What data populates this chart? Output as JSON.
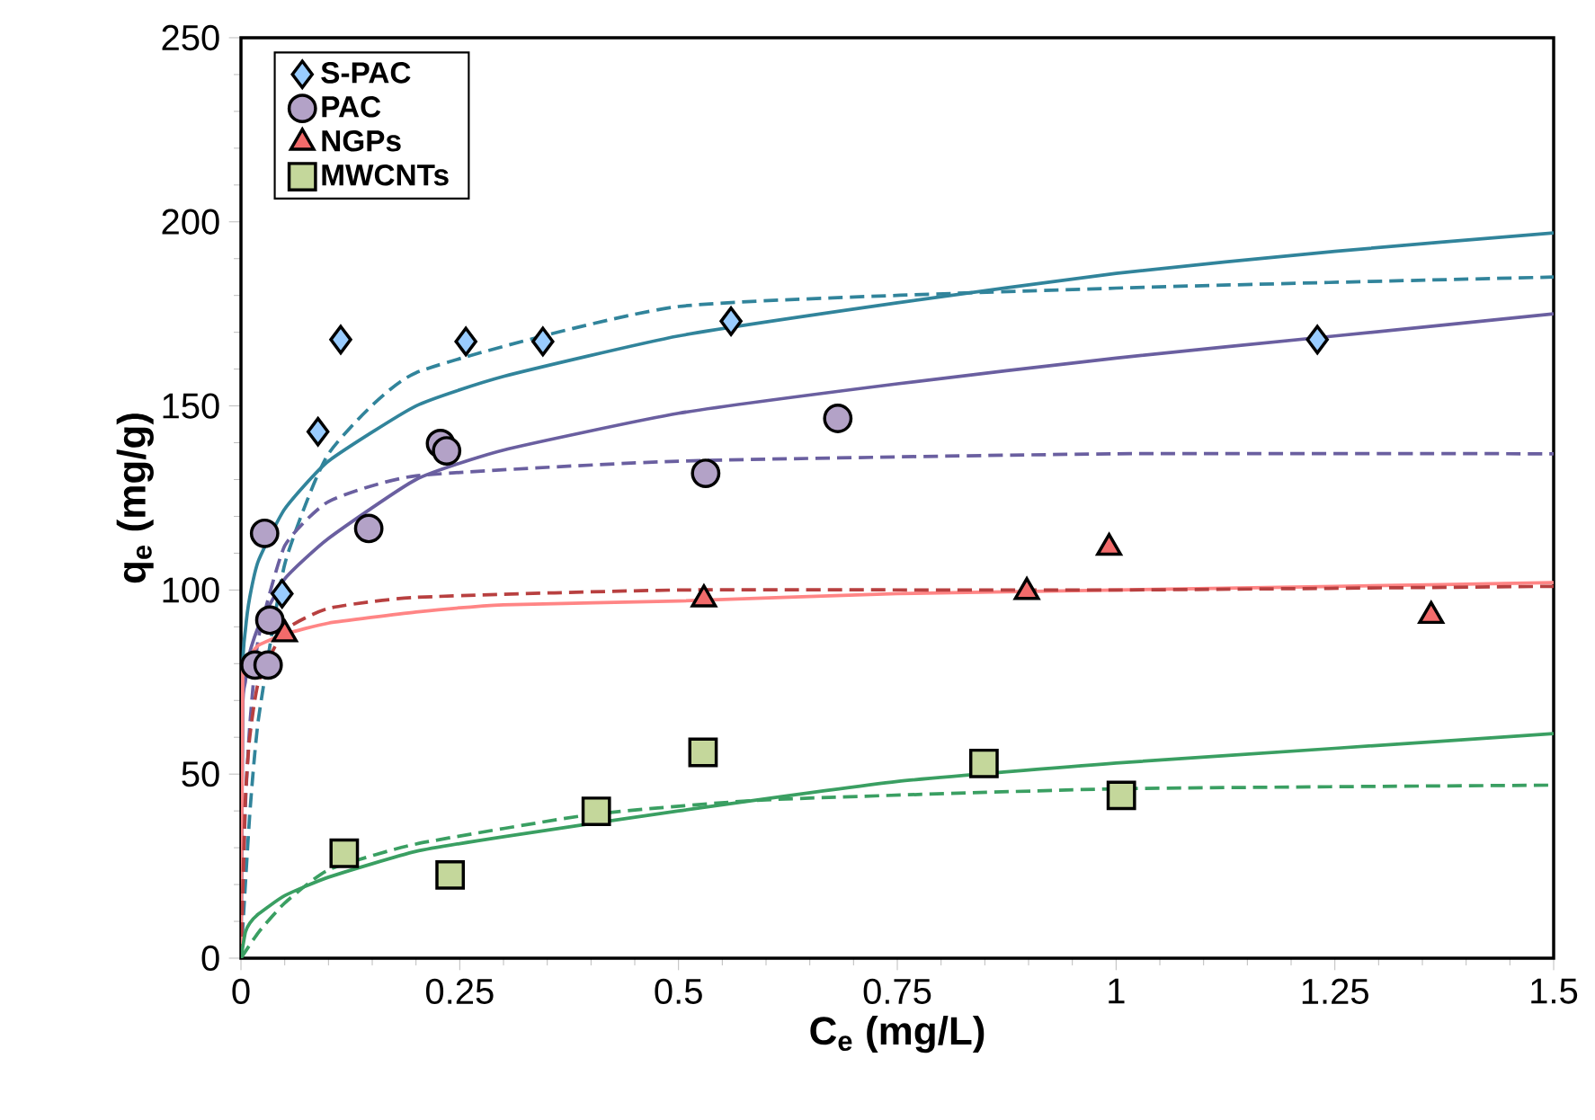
{
  "chart_data": {
    "type": "scatter",
    "xlabel": "C$_{e}$ (mg/L)",
    "ylabel": "q$_{e}$ (mg/g)",
    "xlim": [
      0,
      1.5
    ],
    "ylim": [
      0,
      250
    ],
    "xticks": [
      0,
      0.25,
      0.5,
      0.75,
      1,
      1.25,
      1.5
    ],
    "yticks": [
      0,
      50,
      100,
      150,
      200,
      250
    ],
    "legend": "top left",
    "series": [
      {
        "name": "S-PAC",
        "marker": "diamond",
        "color": "#99ccff",
        "x": [
          0.047,
          0.088,
          0.114,
          0.257,
          0.345,
          0.56,
          1.23
        ],
        "values": [
          99,
          143,
          168,
          167.5,
          167.5,
          173,
          168
        ]
      },
      {
        "name": "PAC",
        "marker": "circle",
        "color": "#b3a2c7",
        "x": [
          0.016,
          0.031,
          0.033,
          0.027,
          0.146,
          0.228,
          0.235,
          0.531,
          0.682
        ],
        "values": [
          79.6,
          79.6,
          91.8,
          115.4,
          116.7,
          139.8,
          137.8,
          131.7,
          146.6
        ]
      },
      {
        "name": "NGPs",
        "marker": "triangle",
        "color": "#f26b6b",
        "x": [
          0.05,
          0.529,
          0.898,
          0.992,
          1.36
        ],
        "values": [
          88,
          97.5,
          99.5,
          111.5,
          93
        ]
      },
      {
        "name": "MWCNTs",
        "marker": "square",
        "color": "#c4d79b",
        "x": [
          0.118,
          0.239,
          0.406,
          0.528,
          0.849,
          1.006
        ],
        "values": [
          28.5,
          22.6,
          39.9,
          55.9,
          52.9,
          44.2
        ]
      },
      {
        "type": "line",
        "line_style": "solid",
        "color": "#31849b",
        "x": [
          0,
          0.002,
          0.005,
          0.01,
          0.02,
          0.05,
          0.1,
          0.2,
          0.3,
          0.5,
          0.75,
          1,
          1.25,
          1.5
        ],
        "values": [
          0,
          78,
          89,
          98,
          108,
          122,
          135,
          150,
          158,
          169,
          178,
          186,
          192,
          197
        ]
      },
      {
        "type": "line",
        "line_style": "dashed",
        "color": "#31849b",
        "x": [
          0,
          0.01,
          0.02,
          0.05,
          0.1,
          0.2,
          0.5,
          1,
          1.5
        ],
        "values": [
          0,
          39,
          65,
          107,
          137,
          159,
          177,
          182,
          185
        ]
      },
      {
        "type": "line",
        "line_style": "solid",
        "color": "#6a5fa0",
        "x": [
          0,
          0.002,
          0.005,
          0.01,
          0.02,
          0.05,
          0.1,
          0.2,
          0.3,
          0.5,
          0.75,
          1,
          1.25,
          1.5
        ],
        "values": [
          0,
          68,
          75,
          83,
          90,
          103,
          114,
          130,
          138,
          148,
          156,
          163,
          169,
          175
        ]
      },
      {
        "type": "line",
        "line_style": "dashed",
        "color": "#6a5fa0",
        "x": [
          0,
          0.005,
          0.01,
          0.02,
          0.05,
          0.1,
          0.2,
          0.5,
          1,
          1.5
        ],
        "values": [
          0,
          41,
          63,
          87,
          112,
          124,
          131,
          135,
          137,
          137
        ]
      },
      {
        "type": "line",
        "line_style": "solid",
        "color": "#ff8585",
        "x": [
          0,
          0.002,
          0.005,
          0.01,
          0.02,
          0.05,
          0.1,
          0.2,
          0.3,
          0.5,
          0.75,
          1,
          1.25,
          1.5
        ],
        "values": [
          0,
          76,
          80,
          82,
          85,
          88,
          91,
          94,
          96,
          97,
          99,
          100,
          101,
          102
        ]
      },
      {
        "type": "line",
        "line_style": "dashed",
        "color": "#b84040",
        "x": [
          0,
          0.005,
          0.01,
          0.02,
          0.05,
          0.1,
          0.2,
          0.5,
          1,
          1.5
        ],
        "values": [
          0,
          43,
          60,
          75,
          89,
          95,
          98,
          100,
          100,
          101
        ]
      },
      {
        "type": "line",
        "line_style": "solid",
        "color": "#3a9f62",
        "x": [
          0,
          0.005,
          0.01,
          0.02,
          0.05,
          0.1,
          0.2,
          0.3,
          0.5,
          0.75,
          1,
          1.25,
          1.5
        ],
        "values": [
          0,
          7,
          9.5,
          12,
          17,
          22,
          29,
          33,
          40,
          48,
          53,
          57,
          61
        ]
      },
      {
        "type": "line",
        "line_style": "dashed",
        "color": "#3a9f62",
        "x": [
          0,
          0.02,
          0.05,
          0.1,
          0.2,
          0.4,
          0.6,
          1,
          1.5
        ],
        "values": [
          0,
          7,
          15,
          24,
          31,
          39,
          43,
          46,
          47
        ]
      }
    ]
  }
}
